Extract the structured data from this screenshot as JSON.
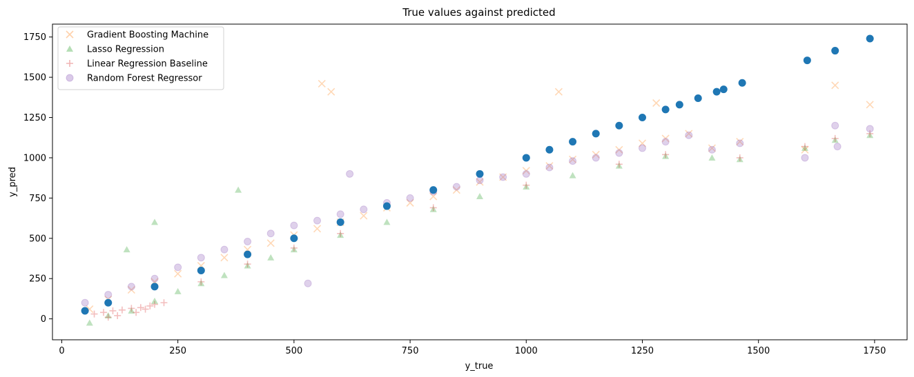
{
  "chart_data": {
    "type": "scatter",
    "title": "True values against predicted",
    "xlabel": "y_true",
    "ylabel": "y_pred",
    "xlim": [
      -20,
      1820
    ],
    "ylim": [
      -130,
      1830
    ],
    "xticks": [
      0,
      250,
      500,
      750,
      1000,
      1250,
      1500,
      1750
    ],
    "yticks": [
      0,
      250,
      500,
      750,
      1000,
      1250,
      1500,
      1750
    ],
    "grid": false,
    "legend_position": "top-left",
    "series": [
      {
        "name": "Gradient Boosting Machine",
        "marker": "x",
        "color": "#ff7f0e",
        "opacity": 0.3,
        "points": [
          [
            60,
            60
          ],
          [
            100,
            120
          ],
          [
            150,
            180
          ],
          [
            200,
            230
          ],
          [
            250,
            280
          ],
          [
            300,
            330
          ],
          [
            350,
            380
          ],
          [
            400,
            430
          ],
          [
            450,
            470
          ],
          [
            500,
            520
          ],
          [
            550,
            560
          ],
          [
            600,
            600
          ],
          [
            650,
            640
          ],
          [
            700,
            690
          ],
          [
            750,
            720
          ],
          [
            800,
            760
          ],
          [
            850,
            800
          ],
          [
            900,
            850
          ],
          [
            950,
            880
          ],
          [
            1000,
            920
          ],
          [
            1050,
            950
          ],
          [
            1100,
            990
          ],
          [
            1150,
            1020
          ],
          [
            1200,
            1050
          ],
          [
            1250,
            1090
          ],
          [
            1300,
            1120
          ],
          [
            1350,
            1150
          ],
          [
            1400,
            1060
          ],
          [
            1460,
            1100
          ],
          [
            1600,
            1050
          ],
          [
            1665,
            1450
          ],
          [
            1740,
            1330
          ],
          [
            560,
            1460
          ],
          [
            580,
            1410
          ],
          [
            1070,
            1410
          ],
          [
            1280,
            1340
          ]
        ]
      },
      {
        "name": "Lasso Regression",
        "marker": "triangle",
        "color": "#2ca02c",
        "opacity": 0.3,
        "points": [
          [
            60,
            -25
          ],
          [
            100,
            20
          ],
          [
            150,
            50
          ],
          [
            200,
            110
          ],
          [
            250,
            170
          ],
          [
            300,
            220
          ],
          [
            350,
            270
          ],
          [
            400,
            330
          ],
          [
            450,
            380
          ],
          [
            500,
            430
          ],
          [
            600,
            520
          ],
          [
            700,
            600
          ],
          [
            800,
            680
          ],
          [
            900,
            760
          ],
          [
            1000,
            820
          ],
          [
            1100,
            890
          ],
          [
            1200,
            950
          ],
          [
            1300,
            1010
          ],
          [
            1400,
            1000
          ],
          [
            1460,
            990
          ],
          [
            1600,
            1060
          ],
          [
            1665,
            1110
          ],
          [
            1740,
            1140
          ],
          [
            140,
            430
          ],
          [
            200,
            600
          ],
          [
            380,
            800
          ]
        ]
      },
      {
        "name": "Linear Regression Baseline",
        "marker": "plus",
        "color": "#d62728",
        "opacity": 0.3,
        "points": [
          [
            70,
            30
          ],
          [
            90,
            40
          ],
          [
            110,
            50
          ],
          [
            130,
            55
          ],
          [
            150,
            65
          ],
          [
            170,
            70
          ],
          [
            190,
            80
          ],
          [
            120,
            20
          ],
          [
            160,
            40
          ],
          [
            180,
            60
          ],
          [
            100,
            10
          ],
          [
            200,
            90
          ],
          [
            220,
            100
          ],
          [
            300,
            230
          ],
          [
            400,
            340
          ],
          [
            500,
            440
          ],
          [
            600,
            530
          ],
          [
            800,
            690
          ],
          [
            1000,
            830
          ],
          [
            1200,
            960
          ],
          [
            1300,
            1020
          ],
          [
            1460,
            1000
          ],
          [
            1600,
            1070
          ],
          [
            1665,
            1120
          ],
          [
            1740,
            1150
          ]
        ]
      },
      {
        "name": "Random Forest Regressor",
        "marker": "circle",
        "color": "#9467bd",
        "opacity": 0.3,
        "points": [
          [
            50,
            100
          ],
          [
            100,
            150
          ],
          [
            150,
            200
          ],
          [
            200,
            250
          ],
          [
            250,
            320
          ],
          [
            300,
            380
          ],
          [
            350,
            430
          ],
          [
            400,
            480
          ],
          [
            450,
            530
          ],
          [
            500,
            580
          ],
          [
            550,
            610
          ],
          [
            600,
            650
          ],
          [
            650,
            680
          ],
          [
            700,
            720
          ],
          [
            750,
            750
          ],
          [
            800,
            790
          ],
          [
            850,
            820
          ],
          [
            900,
            860
          ],
          [
            950,
            880
          ],
          [
            1000,
            900
          ],
          [
            1050,
            940
          ],
          [
            1100,
            980
          ],
          [
            1150,
            1000
          ],
          [
            1200,
            1030
          ],
          [
            1250,
            1060
          ],
          [
            1300,
            1100
          ],
          [
            1350,
            1140
          ],
          [
            1400,
            1050
          ],
          [
            1460,
            1090
          ],
          [
            1600,
            1000
          ],
          [
            1665,
            1200
          ],
          [
            1740,
            1180
          ],
          [
            530,
            220
          ],
          [
            620,
            900
          ],
          [
            1670,
            1070
          ]
        ]
      },
      {
        "name": "",
        "marker": "circle",
        "color": "#1f77b4",
        "opacity": 1,
        "points": [
          [
            50,
            50
          ],
          [
            100,
            100
          ],
          [
            200,
            200
          ],
          [
            300,
            300
          ],
          [
            400,
            400
          ],
          [
            500,
            500
          ],
          [
            600,
            600
          ],
          [
            700,
            700
          ],
          [
            800,
            800
          ],
          [
            900,
            900
          ],
          [
            1000,
            1000
          ],
          [
            1050,
            1050
          ],
          [
            1100,
            1100
          ],
          [
            1150,
            1150
          ],
          [
            1200,
            1200
          ],
          [
            1250,
            1250
          ],
          [
            1300,
            1300
          ],
          [
            1330,
            1330
          ],
          [
            1370,
            1370
          ],
          [
            1410,
            1410
          ],
          [
            1425,
            1425
          ],
          [
            1465,
            1465
          ],
          [
            1605,
            1605
          ],
          [
            1665,
            1665
          ],
          [
            1740,
            1740
          ]
        ]
      }
    ]
  }
}
